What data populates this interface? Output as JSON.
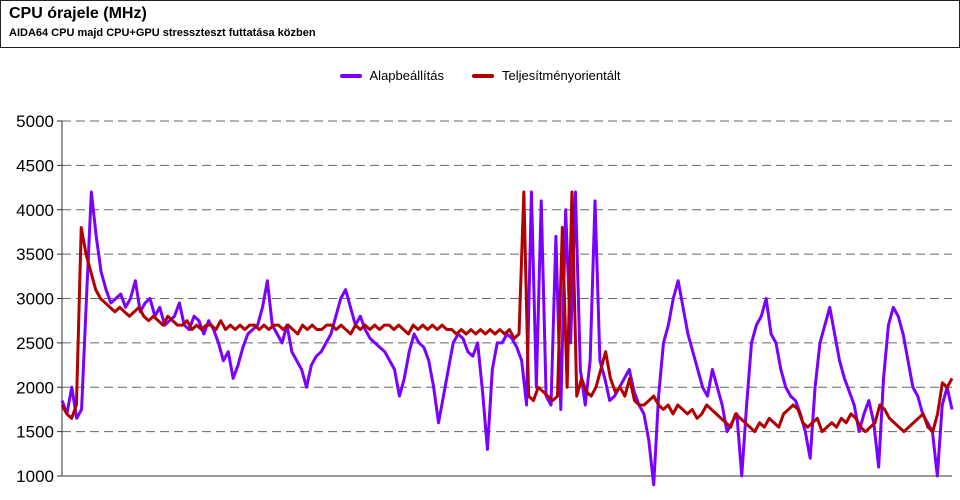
{
  "header": {
    "title": "CPU órajele (MHz)",
    "subtitle": "AIDA64 CPU majd CPU+GPU stresszteszt futtatása közben"
  },
  "chart_data": {
    "type": "line",
    "title": "CPU órajele (MHz)",
    "subtitle": "AIDA64 CPU majd CPU+GPU stresszteszt futtatása közben",
    "xlabel": "",
    "ylabel": "",
    "ylim": [
      1000,
      5000
    ],
    "yticks": [
      1000,
      1500,
      2000,
      2500,
      3000,
      3500,
      4000,
      4500,
      5000
    ],
    "grid": "horizontal dashed",
    "legend_position": "top-center",
    "series": [
      {
        "name": "Alapbeállítás",
        "color": "#7a00ff",
        "values": [
          1850,
          1700,
          2000,
          1650,
          1750,
          3000,
          4200,
          3700,
          3300,
          3100,
          2950,
          3000,
          3050,
          2900,
          3000,
          3200,
          2850,
          2950,
          3000,
          2800,
          2900,
          2700,
          2750,
          2800,
          2950,
          2700,
          2650,
          2800,
          2750,
          2600,
          2750,
          2650,
          2500,
          2300,
          2400,
          2100,
          2250,
          2450,
          2600,
          2650,
          2700,
          2900,
          3200,
          2700,
          2600,
          2500,
          2700,
          2400,
          2300,
          2200,
          2000,
          2250,
          2350,
          2400,
          2500,
          2600,
          2800,
          3000,
          3100,
          2900,
          2700,
          2800,
          2650,
          2550,
          2500,
          2450,
          2400,
          2300,
          2200,
          1900,
          2100,
          2400,
          2600,
          2500,
          2450,
          2300,
          2000,
          1600,
          1900,
          2200,
          2500,
          2600,
          2550,
          2400,
          2350,
          2500,
          1950,
          1300,
          2200,
          2500,
          2500,
          2600,
          2550,
          2450,
          2300,
          1800,
          4200,
          2000,
          4100,
          1900,
          1800,
          3700,
          1750,
          4000,
          2500,
          4200,
          2200,
          1800,
          2300,
          4100,
          2300,
          2100,
          1850,
          1900,
          2000,
          2100,
          2200,
          1950,
          1800,
          1700,
          1400,
          900,
          1900,
          2500,
          2700,
          3000,
          3200,
          2900,
          2600,
          2400,
          2200,
          2000,
          1900,
          2200,
          2000,
          1800,
          1500,
          1600,
          1700,
          1000,
          1800,
          2500,
          2700,
          2800,
          3000,
          2600,
          2500,
          2200,
          2000,
          1900,
          1850,
          1700,
          1500,
          1200,
          2000,
          2500,
          2700,
          2900,
          2600,
          2300,
          2100,
          1950,
          1800,
          1500,
          1700,
          1850,
          1600,
          1100,
          2100,
          2700,
          2900,
          2800,
          2600,
          2300,
          2000,
          1900,
          1700,
          1600,
          1500,
          1000,
          1800,
          2000,
          1750
        ]
      },
      {
        "name": "Teljesítményorientált",
        "color": "#b00000",
        "values": [
          1800,
          1700,
          1650,
          1800,
          3800,
          3500,
          3300,
          3100,
          3000,
          2950,
          2900,
          2850,
          2900,
          2850,
          2800,
          2850,
          2900,
          2800,
          2750,
          2800,
          2750,
          2700,
          2800,
          2750,
          2700,
          2700,
          2750,
          2650,
          2700,
          2650,
          2700,
          2700,
          2650,
          2750,
          2650,
          2700,
          2650,
          2700,
          2650,
          2700,
          2700,
          2650,
          2700,
          2650,
          2700,
          2700,
          2650,
          2700,
          2650,
          2600,
          2700,
          2650,
          2700,
          2650,
          2650,
          2700,
          2700,
          2650,
          2700,
          2650,
          2600,
          2700,
          2650,
          2700,
          2650,
          2700,
          2650,
          2700,
          2700,
          2650,
          2700,
          2650,
          2600,
          2700,
          2650,
          2700,
          2650,
          2700,
          2650,
          2700,
          2650,
          2650,
          2600,
          2650,
          2600,
          2650,
          2600,
          2650,
          2600,
          2650,
          2600,
          2650,
          2600,
          2650,
          2550,
          2600,
          4200,
          1900,
          1850,
          2000,
          1950,
          1900,
          1850,
          1900,
          3800,
          2000,
          4200,
          1900,
          2100,
          1950,
          1900,
          2000,
          2200,
          2400,
          2100,
          1950,
          2000,
          1900,
          2100,
          1850,
          1800,
          1800,
          1850,
          1900,
          1800,
          1750,
          1800,
          1700,
          1800,
          1750,
          1700,
          1750,
          1650,
          1700,
          1800,
          1750,
          1700,
          1650,
          1600,
          1550,
          1700,
          1650,
          1600,
          1550,
          1500,
          1600,
          1550,
          1650,
          1600,
          1550,
          1700,
          1750,
          1800,
          1750,
          1600,
          1550,
          1600,
          1650,
          1500,
          1550,
          1600,
          1550,
          1650,
          1600,
          1700,
          1650,
          1550,
          1500,
          1550,
          1600,
          1800,
          1750,
          1650,
          1600,
          1550,
          1500,
          1550,
          1600,
          1650,
          1700,
          1550,
          1500,
          1700,
          2050,
          2000,
          2100
        ]
      }
    ]
  }
}
